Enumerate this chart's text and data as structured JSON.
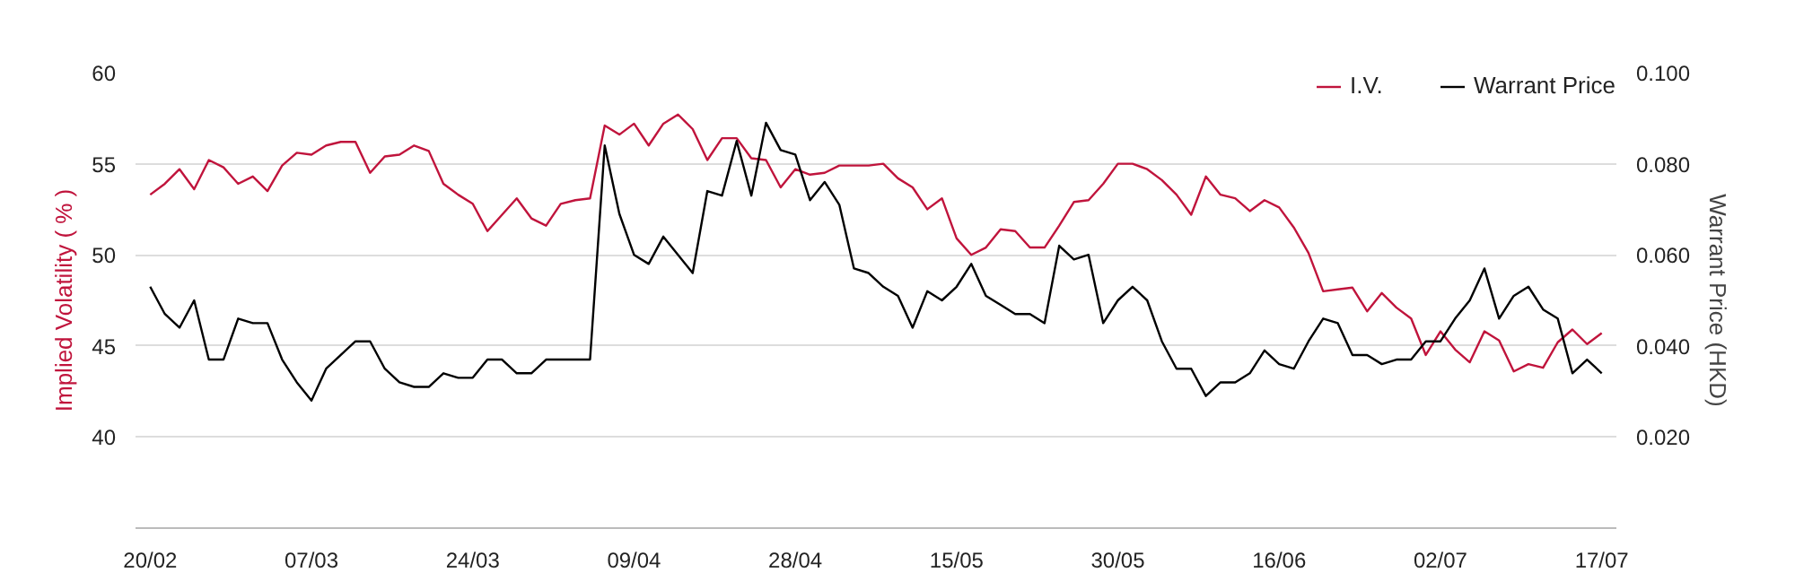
{
  "chart_data": {
    "type": "line",
    "categories": [
      "20/02",
      null,
      null,
      null,
      null,
      null,
      null,
      null,
      null,
      null,
      null,
      "07/03",
      null,
      null,
      null,
      null,
      null,
      null,
      null,
      null,
      null,
      null,
      "24/03",
      null,
      null,
      null,
      null,
      null,
      null,
      null,
      null,
      null,
      null,
      "09/04",
      null,
      null,
      null,
      null,
      null,
      null,
      null,
      null,
      null,
      null,
      "28/04",
      null,
      null,
      null,
      null,
      null,
      null,
      null,
      null,
      null,
      null,
      "15/05",
      null,
      null,
      null,
      null,
      null,
      null,
      null,
      null,
      null,
      null,
      "30/05",
      null,
      null,
      null,
      null,
      null,
      null,
      null,
      null,
      null,
      null,
      "16/06",
      null,
      null,
      null,
      null,
      null,
      null,
      null,
      null,
      null,
      null,
      "02/07",
      null,
      null,
      null,
      null,
      null,
      null,
      null,
      null,
      null,
      null,
      "17/07"
    ],
    "ylabel": "Implied Volatility\n( % )",
    "y2label": "Warrant Price (HKD)",
    "ylim": [
      35,
      60
    ],
    "yticks": [
      40,
      45,
      50,
      55,
      60
    ],
    "y2lim": [
      0,
      0.1
    ],
    "y2ticks": [
      {
        "value": 0.02,
        "label": "0.020"
      },
      {
        "value": 0.04,
        "label": "0.040"
      },
      {
        "value": 0.06,
        "label": "0.060"
      },
      {
        "value": 0.08,
        "label": "0.080"
      },
      {
        "value": 0.1,
        "label": "0.100"
      }
    ],
    "grid": "y",
    "legend": "top right",
    "marker": "none",
    "line_style": "solid",
    "series": [
      {
        "name": "I.V.",
        "color": "#c0143c",
        "values": [
          53.3,
          53.9,
          54.7,
          53.6,
          55.2,
          54.8,
          53.9,
          54.3,
          53.5,
          54.9,
          55.6,
          55.5,
          56.0,
          56.2,
          56.2,
          54.5,
          55.4,
          55.5,
          56.0,
          55.7,
          53.9,
          53.3,
          52.8,
          51.3,
          52.2,
          53.1,
          52.0,
          51.6,
          52.8,
          53.0,
          53.1,
          57.1,
          56.6,
          57.2,
          56.0,
          57.2,
          57.7,
          56.9,
          55.2,
          56.4,
          56.4,
          55.3,
          55.2,
          53.7,
          54.7,
          54.4,
          54.5,
          54.9,
          54.9,
          54.9,
          55.0,
          54.2,
          53.7,
          52.5,
          53.1,
          50.9,
          50.0,
          50.4,
          51.4,
          51.3,
          50.4,
          50.4,
          51.6,
          52.9,
          53.0,
          53.9,
          55.0,
          55.0,
          54.7,
          54.1,
          53.3,
          52.2,
          54.3,
          53.3,
          53.1,
          52.4,
          53.0,
          52.6,
          51.5,
          50.1,
          48.0,
          48.1,
          48.2,
          46.9,
          47.9,
          47.1,
          46.5,
          44.5,
          45.8,
          44.8,
          44.1,
          45.8,
          45.3,
          43.6,
          44.0,
          43.8,
          45.2,
          45.9,
          45.1,
          45.7
        ]
      },
      {
        "name": "Warrant Price",
        "color": "#000000",
        "axis": "y2",
        "values": [
          0.053,
          0.047,
          0.044,
          0.05,
          0.037,
          0.037,
          0.046,
          0.045,
          0.045,
          0.037,
          0.032,
          0.028,
          0.035,
          0.038,
          0.041,
          0.041,
          0.035,
          0.032,
          0.031,
          0.031,
          0.034,
          0.033,
          0.033,
          0.037,
          0.037,
          0.034,
          0.034,
          0.037,
          0.037,
          0.037,
          0.037,
          0.084,
          0.069,
          0.06,
          0.058,
          0.064,
          0.06,
          0.056,
          0.074,
          0.073,
          0.085,
          0.073,
          0.089,
          0.083,
          0.082,
          0.072,
          0.076,
          0.071,
          0.057,
          0.056,
          0.053,
          0.051,
          0.044,
          0.052,
          0.05,
          0.053,
          0.058,
          0.051,
          0.049,
          0.047,
          0.047,
          0.045,
          0.062,
          0.059,
          0.06,
          0.045,
          0.05,
          0.053,
          0.05,
          0.041,
          0.035,
          0.035,
          0.029,
          0.032,
          0.032,
          0.034,
          0.039,
          0.036,
          0.035,
          0.041,
          0.046,
          0.045,
          0.038,
          0.038,
          0.036,
          0.037,
          0.037,
          0.041,
          0.041,
          0.046,
          0.05,
          0.057,
          0.046,
          0.051,
          0.053,
          0.048,
          0.046,
          0.034,
          0.037,
          0.034
        ]
      }
    ]
  }
}
